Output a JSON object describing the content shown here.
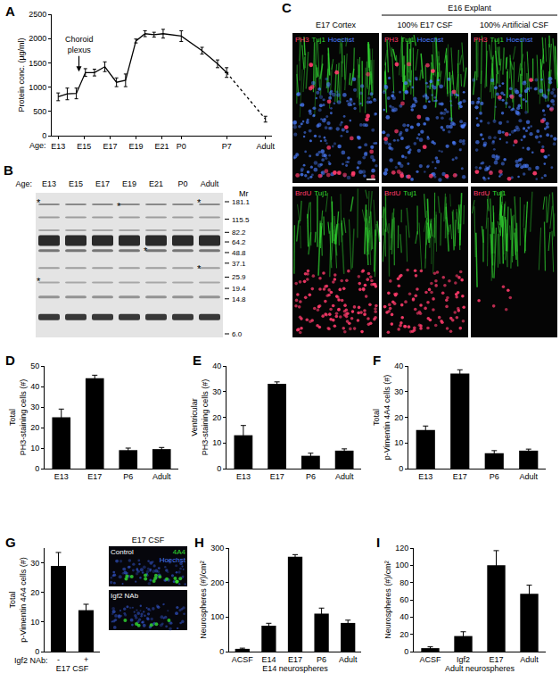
{
  "chart_data": [
    {
      "label": "A",
      "type": "line",
      "xlabel": "Age:",
      "ylabel": "Protein conc. (µg/ml)",
      "color": "#000000",
      "marker": "none",
      "grid": false,
      "annotation": {
        "text": "Choroid\nplexus",
        "x": 14.6,
        "y": 1320
      },
      "xlim": [
        12.5,
        29.5
      ],
      "xticks": [
        {
          "value": 13,
          "label": "E13"
        },
        {
          "value": 15,
          "label": "E15"
        },
        {
          "value": 17,
          "label": "E17"
        },
        {
          "value": 19,
          "label": "E19"
        },
        {
          "value": 21,
          "label": "E21"
        },
        {
          "value": 22.5,
          "label": "P0"
        },
        {
          "value": 26,
          "label": "P7"
        },
        {
          "value": 29,
          "label": "Adult"
        }
      ],
      "ylim": [
        0,
        2500
      ],
      "yticks": [
        0,
        500,
        1000,
        1500,
        2000,
        2500
      ],
      "series": [
        {
          "x": [
            13,
            13.7,
            14.4,
            15.1,
            15.8,
            16.6,
            17.5,
            18.2,
            19,
            19.7,
            20.4,
            21.1,
            22.5,
            24.1,
            25.3,
            26
          ],
          "values": [
            800,
            860,
            870,
            1300,
            1300,
            1420,
            1100,
            1140,
            1950,
            2100,
            2080,
            2100,
            2050,
            1750,
            1480,
            1300
          ],
          "errors": [
            80,
            120,
            110,
            80,
            70,
            100,
            90,
            130,
            40,
            60,
            50,
            90,
            110,
            70,
            80,
            100
          ],
          "line_style": "solid"
        },
        {
          "x": [
            26,
            29
          ],
          "values": [
            1300,
            340
          ],
          "errors": [
            null,
            60
          ],
          "line_style": "dashed"
        }
      ]
    },
    {
      "label": "D",
      "type": "bar",
      "ylabel": "Total\nPH3-staining cells (#)",
      "categories": [
        "E13",
        "E17",
        "P6",
        "Adult"
      ],
      "values": [
        25,
        44,
        9,
        9.5
      ],
      "errors": [
        4,
        1.5,
        1,
        0.8
      ],
      "color": "#000000",
      "ylim": [
        0,
        50
      ],
      "yticks": [
        0,
        10,
        20,
        30,
        40,
        50
      ],
      "grid": false
    },
    {
      "label": "E",
      "type": "bar",
      "ylabel": "Ventricular\nPH3-staining cells (#)",
      "categories": [
        "E13",
        "E17",
        "P6",
        "Adult"
      ],
      "values": [
        13,
        33,
        5,
        7
      ],
      "errors": [
        3.8,
        0.8,
        1,
        0.7
      ],
      "color": "#000000",
      "ylim": [
        0,
        40
      ],
      "yticks": [
        0,
        10,
        20,
        30,
        40
      ],
      "grid": false
    },
    {
      "label": "F",
      "type": "bar",
      "ylabel": "Total\np-Vimentin 4A4 cells (#)",
      "categories": [
        "E13",
        "E17",
        "P6",
        "Adult"
      ],
      "values": [
        15,
        37,
        6,
        7
      ],
      "errors": [
        1.6,
        1.5,
        1,
        0.6
      ],
      "color": "#000000",
      "ylim": [
        0,
        40
      ],
      "yticks": [
        0,
        10,
        20,
        30,
        40
      ],
      "grid": false
    },
    {
      "label": "G",
      "type": "bar",
      "ylabel": "Total\np-Vimentin 4A4 cells (#)",
      "xlabel": "E17 CSF",
      "annotation": {
        "text": "Igf2 NAb:"
      },
      "categories": [
        "-",
        "+"
      ],
      "values": [
        29,
        14
      ],
      "errors": [
        4.5,
        2
      ],
      "color": "#000000",
      "ylim": [
        0,
        35
      ],
      "yticks": [
        0,
        10,
        20,
        30
      ],
      "grid": false
    },
    {
      "label": "H",
      "type": "bar",
      "ylabel": "Neurospheres (#)/cm²",
      "xlabel": "E14 neurospheres",
      "categories": [
        "ACSF",
        "E14",
        "E17",
        "P6",
        "Adult"
      ],
      "values": [
        8,
        75,
        275,
        110,
        83
      ],
      "errors": [
        2,
        7,
        6,
        16,
        8
      ],
      "color": "#000000",
      "ylim": [
        0,
        300
      ],
      "yticks": [
        0,
        100,
        200,
        300
      ],
      "grid": false
    },
    {
      "label": "I",
      "type": "bar",
      "ylabel": "Neurospheres (#)/cm²",
      "xlabel": "Adult neurospheres",
      "categories": [
        "ACSF",
        "Igf2",
        "E17",
        "Adult"
      ],
      "values": [
        4,
        18,
        100,
        67
      ],
      "errors": [
        1.5,
        5,
        17,
        10
      ],
      "color": "#000000",
      "ylim": [
        0,
        120
      ],
      "yticks": [
        0,
        20,
        40,
        60,
        80,
        100,
        120
      ],
      "grid": false
    }
  ],
  "blot": {
    "label": "B",
    "lane_label": "Age:",
    "lanes": [
      "E13",
      "E15",
      "E17",
      "E19",
      "E21",
      "P0",
      "Adult"
    ],
    "marker_label": "Mr",
    "markers": [
      {
        "value": 181.1,
        "label": "181.1"
      },
      {
        "value": 115.5,
        "label": "115.5"
      },
      {
        "value": 82.2,
        "label": "82.2"
      },
      {
        "value": 64.2,
        "label": "64.2"
      },
      {
        "value": 48.8,
        "label": "48.8"
      },
      {
        "value": 37.1,
        "label": "37.1"
      },
      {
        "value": 25.9,
        "label": "25.9"
      },
      {
        "value": 19.4,
        "label": "19.4"
      },
      {
        "value": 14.8,
        "label": "14.8"
      },
      {
        "value": 6,
        "label": "6.0"
      }
    ],
    "asterisks": {
      "symbol": "*",
      "marks": [
        {
          "lane": "E13",
          "mr": 181.1
        },
        {
          "lane": "E13",
          "mr": 24
        },
        {
          "lane": "E19",
          "mr": 165
        },
        {
          "lane": "E21",
          "mr": 52
        },
        {
          "lane": "Adult",
          "mr": 181.1
        },
        {
          "lane": "Adult",
          "mr": 33
        }
      ]
    }
  },
  "micrographs": {
    "label": "C",
    "columns": [
      "E17 Cortex",
      "100% E17 CSF",
      "100% Artificial CSF"
    ],
    "group": {
      "text": "E16 Explant",
      "columns": [
        1,
        2
      ]
    },
    "rows": [
      {
        "stains": [
          {
            "text": "PH3",
            "color": "#ff3b6b"
          },
          {
            "text": "Tuj1",
            "color": "#33dd33"
          },
          {
            "text": "Hoechst",
            "color": "#4a7dff"
          }
        ]
      },
      {
        "stains": [
          {
            "text": "BrdU",
            "color": "#ff3b6b"
          },
          {
            "text": "Tuj1",
            "color": "#33dd33"
          }
        ]
      }
    ]
  },
  "inset": {
    "title": "E17 CSF",
    "panels": [
      {
        "text": "Control",
        "stains": [
          {
            "text": "4A4",
            "color": "#33dd33"
          },
          {
            "text": "Hoechst",
            "color": "#4a7dff"
          }
        ]
      },
      {
        "text": "Igf2 NAb",
        "stains": []
      }
    ]
  }
}
